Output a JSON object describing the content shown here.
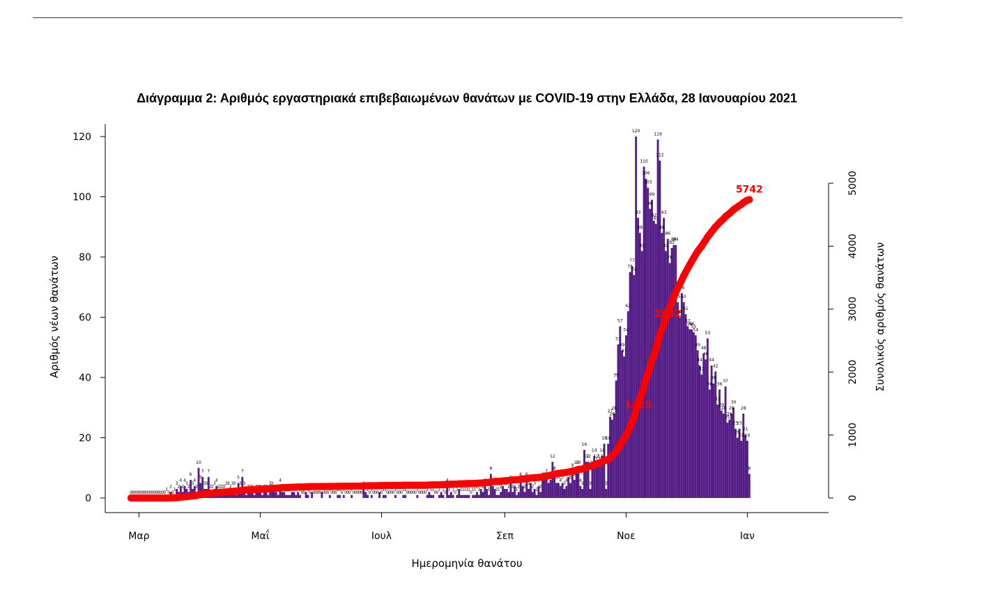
{
  "chart_data": {
    "type": "bar",
    "title": "Διάγραμμα 2: Αριθμός εργαστηριακά επιβεβαιωμένων θανάτων με COVID-19 στην Ελλάδα, 28 Ιανουαρίου 2021",
    "xlabel": "Ημερομηνία θανάτου",
    "ylabel": "Αριθμός νέων θανάτων",
    "y2label": "Συνολικός αριθμός θανάτων",
    "x_start_date": "2020-02-26",
    "x_ticks": [
      {
        "date": "2020-03-01",
        "label": "Μαρ"
      },
      {
        "date": "2020-05-01",
        "label": "Μαΐ"
      },
      {
        "date": "2020-07-01",
        "label": "Ιουλ"
      },
      {
        "date": "2020-09-01",
        "label": "Σεπ"
      },
      {
        "date": "2020-11-01",
        "label": "Νοε"
      },
      {
        "date": "2021-01-01",
        "label": "Ιαν"
      }
    ],
    "ylim": [
      0,
      120
    ],
    "yticks": [
      0,
      20,
      40,
      60,
      80,
      100,
      120
    ],
    "y2lim": [
      0,
      5742
    ],
    "y2ticks": [
      0,
      1000,
      2000,
      3000,
      4000,
      5000
    ],
    "series": [
      {
        "name": "Αριθμός νέων θανάτων",
        "color": "#541e86",
        "values": [
          0,
          0,
          0,
          0,
          0,
          0,
          0,
          0,
          0,
          0,
          0,
          0,
          0,
          0,
          0,
          0,
          0,
          0,
          1,
          0,
          2,
          0,
          1,
          3,
          2,
          4,
          2,
          4,
          3,
          2,
          6,
          3,
          4,
          2,
          10,
          5,
          7,
          3,
          3,
          7,
          2,
          2,
          3,
          4,
          2,
          2,
          2,
          2,
          3,
          3,
          2,
          3,
          3,
          1,
          5,
          3,
          7,
          3,
          1,
          2,
          2,
          2,
          1,
          2,
          2,
          2,
          1,
          2,
          2,
          1,
          3,
          3,
          2,
          2,
          1,
          4,
          2,
          2,
          1,
          1,
          1,
          2,
          2,
          1,
          2,
          1,
          0,
          0,
          2,
          1,
          0,
          2,
          0,
          0,
          0,
          0,
          2,
          0,
          0,
          0,
          1,
          0,
          0,
          0,
          1,
          1,
          0,
          1,
          0,
          0,
          0,
          1,
          0,
          0,
          0,
          0,
          0,
          3,
          2,
          1,
          0,
          1,
          0,
          0,
          0,
          2,
          0,
          1,
          1,
          0,
          0,
          0,
          0,
          1,
          0,
          0,
          0,
          1,
          1,
          0,
          0,
          0,
          0,
          0,
          1,
          0,
          0,
          0,
          0,
          1,
          2,
          1,
          1,
          0,
          0,
          1,
          2,
          1,
          0,
          4,
          1,
          2,
          1,
          0,
          1,
          3,
          1,
          1,
          1,
          1,
          1,
          0,
          1,
          1,
          2,
          1,
          3,
          2,
          4,
          3,
          1,
          8,
          4,
          3,
          1,
          1,
          2,
          4,
          3,
          3,
          2,
          5,
          2,
          4,
          1,
          2,
          6,
          4,
          2,
          6,
          3,
          5,
          2,
          3,
          1,
          4,
          2,
          6,
          6,
          7,
          5,
          6,
          12,
          8,
          5,
          5,
          4,
          5,
          3,
          4,
          7,
          5,
          9,
          6,
          10,
          10,
          4,
          3,
          16,
          12,
          12,
          3,
          10,
          14,
          12,
          11,
          12,
          14,
          18,
          3,
          18,
          27,
          26,
          28,
          39,
          51,
          57,
          49,
          47,
          54,
          62,
          75,
          77,
          74,
          120,
          93,
          88,
          82,
          110,
          106,
          103,
          96,
          99,
          92,
          91,
          119,
          112,
          88,
          93,
          82,
          86,
          78,
          83,
          84,
          84,
          65,
          60,
          68,
          65,
          61,
          57,
          56,
          56,
          55,
          54,
          49,
          44,
          41,
          48,
          46,
          53,
          36,
          44,
          38,
          42,
          31,
          36,
          29,
          28,
          37,
          25,
          26,
          28,
          30,
          23,
          20,
          23,
          19,
          28,
          21,
          19,
          8
        ]
      },
      {
        "name": "Συνολικός αριθμός θανάτων",
        "color": "#ff0000",
        "type": "line"
      }
    ],
    "annotations": [
      {
        "text": "1455",
        "value": 1455
      },
      {
        "text": "2882",
        "value": 2882
      },
      {
        "text": "5742",
        "value": 5742
      }
    ],
    "grid": false,
    "legend": "none"
  }
}
